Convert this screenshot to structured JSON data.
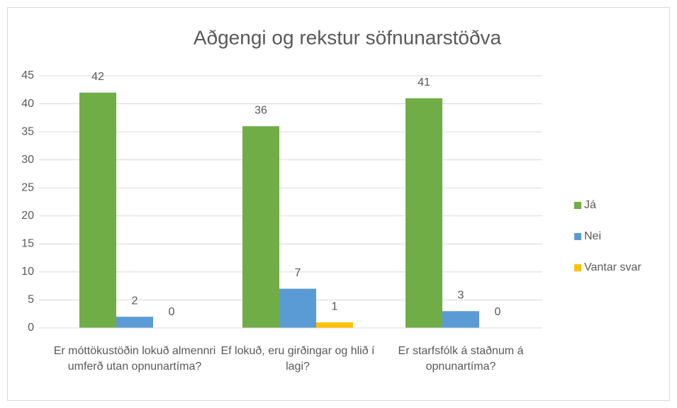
{
  "chart_data": {
    "type": "bar",
    "title": "Aðgengi og rekstur söfnunarstöðva",
    "categories": [
      "Er móttökustöðin lokuð almennri umferð utan opnunartíma?",
      "Ef lokuð, eru girðingar og hlið í lagi?",
      "Er starfsfólk á staðnum á opnunartíma?"
    ],
    "series": [
      {
        "name": "Já",
        "color": "#70ad47",
        "values": [
          42,
          36,
          41
        ]
      },
      {
        "name": "Nei",
        "color": "#5b9bd5",
        "values": [
          2,
          7,
          3
        ]
      },
      {
        "name": "Vantar svar",
        "color": "#ffc000",
        "values": [
          0,
          1,
          0
        ]
      }
    ],
    "ylim": [
      0,
      45
    ],
    "yticks": [
      0,
      5,
      10,
      15,
      20,
      25,
      30,
      35,
      40,
      45
    ],
    "grid": true,
    "legend": "right"
  }
}
